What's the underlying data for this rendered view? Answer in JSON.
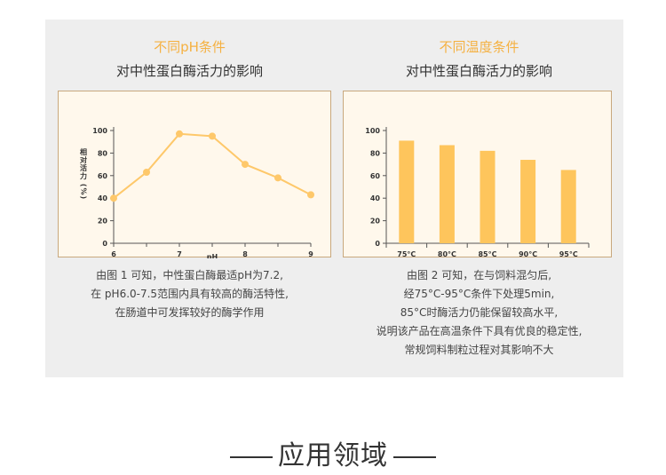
{
  "panel_left": {
    "headline": "不同pH条件",
    "subtitle": "对中性蛋白酶活力的影响",
    "description": [
      "由图 1 可知，中性蛋白酶最适pH为7.2,",
      "在 pH6.0-7.5范围内具有较高的酶活特性,",
      "在肠道中可发挥较好的酶学作用"
    ]
  },
  "panel_right": {
    "headline": "不同温度条件",
    "subtitle": "对中性蛋白酶活力的影响",
    "description": [
      "由图 2 可知，在与饲料混匀后,",
      "经75°C-95°C条件下处理5min,",
      "85°C时酶活力仍能保留较高水平,",
      "说明该产品在高温条件下具有优良的稳定性,",
      "常规饲料制粒过程对其影响不大"
    ]
  },
  "section": {
    "title": "应用领域"
  },
  "colors": {
    "accent": "#f5b142",
    "chart_fill": "#fec55c",
    "line": "#fec86a",
    "panel_bg": "#eeeeee",
    "chart_bg": "#fff8ec"
  },
  "chart_data": [
    {
      "type": "line",
      "x": [
        6,
        6.5,
        7,
        7.5,
        8,
        8.5,
        9
      ],
      "y": [
        40,
        63,
        97,
        95,
        70,
        58,
        43
      ],
      "xticks": [
        "6",
        "7",
        "8",
        "9"
      ],
      "yticks": [
        "0",
        "20",
        "40",
        "60",
        "80",
        "100"
      ],
      "xlabel": "pH",
      "ylabel": "相对活力 (%)",
      "xlim": [
        6,
        9
      ],
      "ylim": [
        0,
        100
      ]
    },
    {
      "type": "bar",
      "categories": [
        "75°C",
        "80°C",
        "85°C",
        "90°C",
        "95°C"
      ],
      "values": [
        91,
        87,
        82,
        74,
        65
      ],
      "yticks": [
        "0",
        "20",
        "40",
        "60",
        "80",
        "100"
      ],
      "ylim": [
        0,
        100
      ]
    }
  ]
}
